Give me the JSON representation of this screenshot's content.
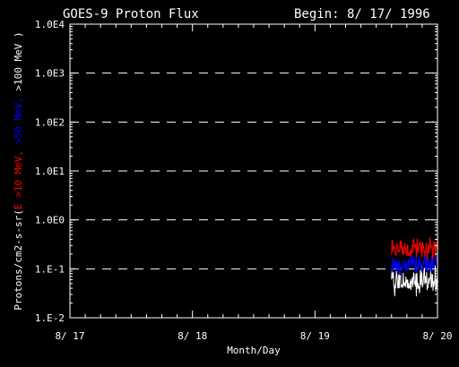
{
  "chart_data": {
    "type": "line",
    "title": "GOES-9 Proton Flux",
    "subtitle": "Begin: 8/ 17/ 1996",
    "xlabel": "Month/Day",
    "ylabel_parts": [
      {
        "text": "Protons/cm2-s-sr(",
        "color": "#ffffff"
      },
      {
        "text": "E >10 MeV, ",
        "color": "#ff0000"
      },
      {
        "text": ">50 MeV, ",
        "color": "#0000ff"
      },
      {
        "text": ">100 MeV )",
        "color": "#ffffff"
      }
    ],
    "y_scale": "log",
    "ylim": [
      0.01,
      10000
    ],
    "yticks": [
      {
        "value": 10000,
        "label": "1.0E4"
      },
      {
        "value": 1000,
        "label": "1.0E3"
      },
      {
        "value": 100,
        "label": "1.0E2"
      },
      {
        "value": 10,
        "label": "1.0E1"
      },
      {
        "value": 1,
        "label": "1.0E0"
      },
      {
        "value": 0.1,
        "label": "1.E-1"
      },
      {
        "value": 0.01,
        "label": "1.E-2"
      }
    ],
    "xlim": [
      "1996-08-17",
      "1996-08-20"
    ],
    "xticks": [
      {
        "value": "1996-08-17",
        "label": "8/ 17"
      },
      {
        "value": "1996-08-18",
        "label": "8/ 18"
      },
      {
        "value": "1996-08-19",
        "label": "8/ 19"
      },
      {
        "value": "1996-08-20",
        "label": "8/ 20"
      }
    ],
    "grid": "dashed-horizontal",
    "series": [
      {
        "color": "#ff0000",
        "data_start": "1996-08-19T15:00",
        "data_end": "1996-08-20T00:00",
        "approx_min": 0.15,
        "approx_max": 0.45
      },
      {
        "color": "#0000ff",
        "data_start": "1996-08-19T15:00",
        "data_end": "1996-08-20T00:00",
        "approx_min": 0.07,
        "approx_max": 0.22
      },
      {
        "color": "#ffffff",
        "data_start": "1996-08-19T15:00",
        "data_end": "1996-08-20T00:00",
        "approx_min": 0.025,
        "approx_max": 0.12
      }
    ]
  }
}
